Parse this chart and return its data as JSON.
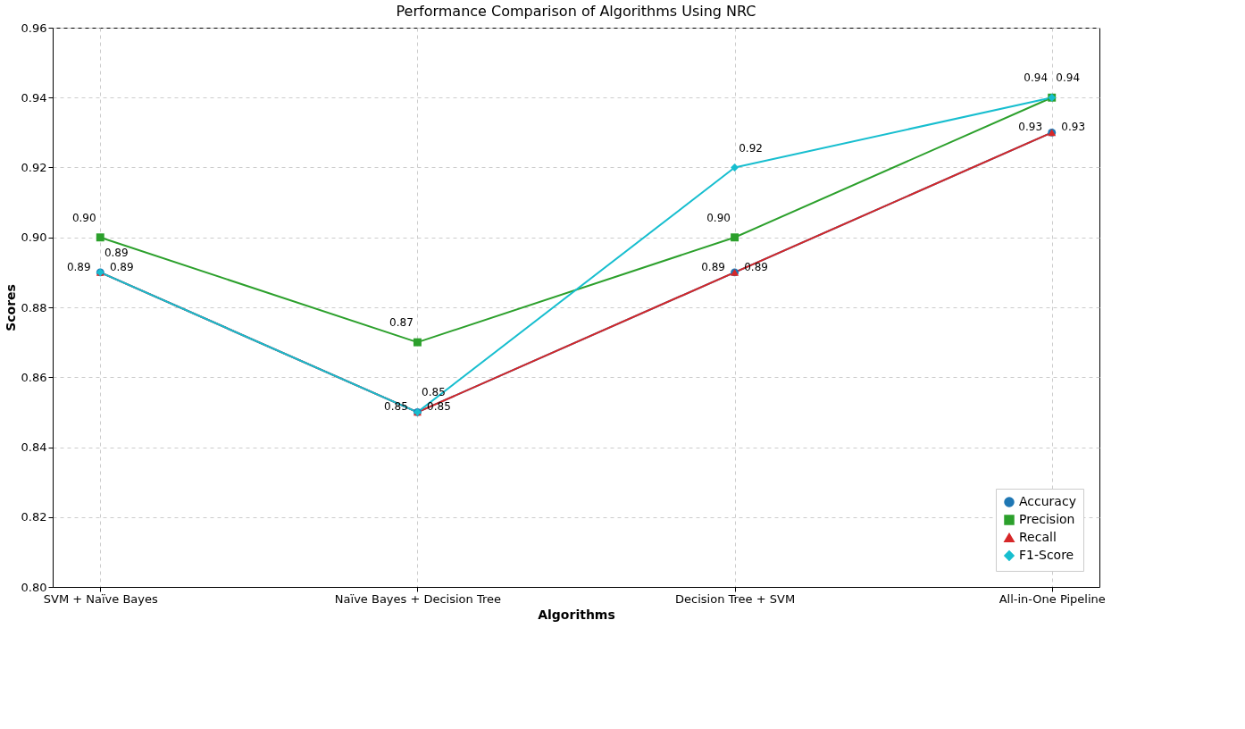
{
  "chart_data": {
    "type": "line",
    "title": "Performance Comparison of Algorithms Using NRC",
    "xlabel": "Algorithms",
    "ylabel": "Scores",
    "categories": [
      "SVM + Naïve Bayes",
      "Naïve Bayes + Decision Tree",
      "Decision Tree + SVM",
      "All-in-One Pipeline"
    ],
    "series": [
      {
        "name": "Accuracy",
        "color": "#1f77b4",
        "marker": "circle",
        "values": [
          0.89,
          0.85,
          0.89,
          0.93
        ],
        "value_labels": [
          "0.89",
          "0.85",
          "0.89",
          "0.93"
        ]
      },
      {
        "name": "Precision",
        "color": "#2ca02c",
        "marker": "square",
        "values": [
          0.9,
          0.87,
          0.9,
          0.94
        ],
        "value_labels": [
          "0.90",
          "0.87",
          "0.90",
          "0.94"
        ]
      },
      {
        "name": "Recall",
        "color": "#d62728",
        "marker": "triangle",
        "values": [
          0.89,
          0.85,
          0.89,
          0.93
        ],
        "value_labels": [
          "0.89",
          "0.85",
          "0.89",
          "0.93"
        ]
      },
      {
        "name": "F1-Score",
        "color": "#17becf",
        "marker": "diamond",
        "values": [
          0.89,
          0.85,
          0.92,
          0.94
        ],
        "value_labels": [
          "0.89",
          "0.85",
          "0.92",
          "0.94"
        ]
      }
    ],
    "ylim": [
      0.8,
      0.96
    ],
    "yticks": [
      {
        "value": 0.8,
        "label": "0.80"
      },
      0.82,
      0.84,
      0.86,
      0.88,
      {
        "value": 0.9,
        "label": "0.90"
      },
      0.92,
      0.94,
      0.96
    ],
    "grid": true,
    "legend": "bottom right",
    "line_style": "solid"
  }
}
